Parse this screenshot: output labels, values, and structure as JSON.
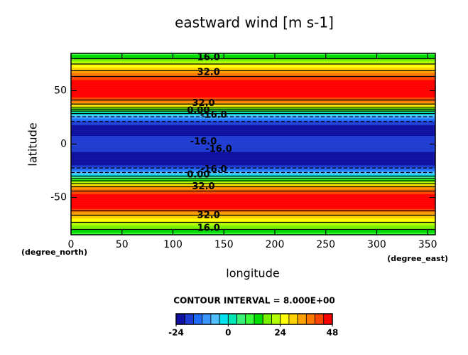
{
  "chart_data": {
    "type": "contour",
    "title": "eastward wind [m s-1]",
    "x_label": "longitude",
    "y_label": "latitude",
    "x_unit": "(degree_east)",
    "y_unit": "(degree_north)",
    "xlim": [
      0,
      357.5
    ],
    "ylim": [
      -85,
      85
    ],
    "xticks": [
      0,
      50,
      100,
      150,
      200,
      250,
      300,
      350
    ],
    "yticks": [
      -50,
      0,
      50
    ],
    "latitudes": [
      85,
      80,
      75,
      70,
      65,
      60,
      55,
      50,
      45,
      40,
      35,
      30,
      25,
      20,
      15,
      10,
      5,
      0,
      -5,
      -10,
      -15,
      -20,
      -25,
      -30,
      -35,
      -40,
      -45,
      -50,
      -55,
      -60,
      -65,
      -70,
      -75,
      -80,
      -85
    ],
    "values": [
      10,
      16,
      24,
      30,
      38,
      44,
      47,
      47,
      46,
      38,
      26,
      4,
      -10,
      -18,
      -22,
      -21,
      -19,
      -18,
      -19,
      -21,
      -22,
      -20,
      -12,
      0,
      18,
      32,
      42,
      47,
      47,
      46,
      34,
      28,
      22,
      16,
      10
    ],
    "levels": [
      -24,
      -20,
      -16,
      -12,
      -8,
      -4,
      0,
      4,
      8,
      12,
      16,
      20,
      24,
      28,
      32,
      36,
      40,
      44,
      48
    ],
    "colors": [
      "#1010a0",
      "#1e3cd2",
      "#1e6eff",
      "#3c96ff",
      "#50beff",
      "#00e1f0",
      "#00e6b4",
      "#3cf078",
      "#3cff3c",
      "#00dc00",
      "#78f000",
      "#b4ff00",
      "#ffff00",
      "#ffd200",
      "#ffa000",
      "#ff7800",
      "#ff4600",
      "#ff0000"
    ],
    "contour_interval": 8,
    "contour_interval_text": "CONTOUR INTERVAL = 8.000E+00",
    "colorbar_ticks": [
      -24,
      0,
      24,
      48
    ],
    "contour_labels": [
      {
        "label": "16.0",
        "x": 135,
        "y": 81
      },
      {
        "label": "32.0",
        "x": 135,
        "y": 67
      },
      {
        "label": "32.0",
        "x": 130,
        "y": 38
      },
      {
        "label": "0.00",
        "x": 125,
        "y": 31
      },
      {
        "label": "-16.0",
        "x": 140,
        "y": 27
      },
      {
        "label": "-16.0",
        "x": 130,
        "y": 2
      },
      {
        "label": "-16.0",
        "x": 145,
        "y": -5
      },
      {
        "label": "-16.0",
        "x": 140,
        "y": -24
      },
      {
        "label": "0.00",
        "x": 125,
        "y": -29
      },
      {
        "label": "32.0",
        "x": 130,
        "y": -40
      },
      {
        "label": "32.0",
        "x": 135,
        "y": -67
      },
      {
        "label": "16.0",
        "x": 135,
        "y": -79
      }
    ]
  }
}
